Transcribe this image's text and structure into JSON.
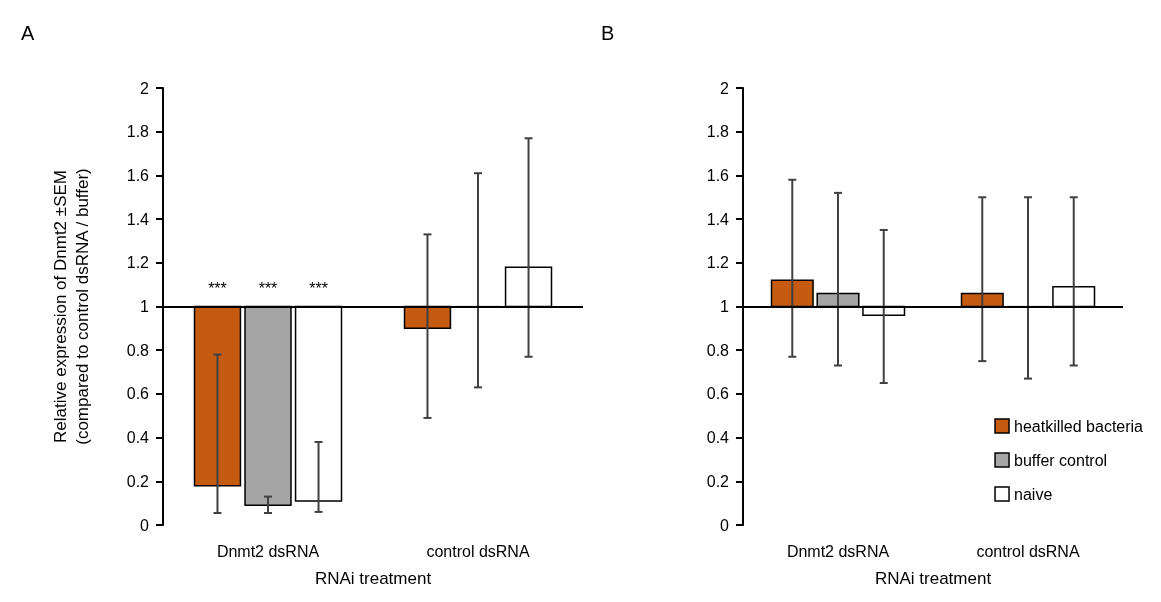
{
  "chart_data": [
    {
      "type": "bar",
      "title": "A",
      "ylabel": "Relative expression of Dnmt2 ±SEM\n(compared to control dsRNA / buffer)",
      "xlabel": "RNAi treatment",
      "categories": [
        "Dnmt2 dsRNA",
        "control dsRNA"
      ],
      "series": [
        {
          "color": "#c55a11",
          "base": [
            1,
            1
          ],
          "values": [
            -0.82,
            -0.1
          ],
          "errors": [
            [
              0.055,
              0.78
            ],
            [
              0.49,
              1.33
            ]
          ]
        },
        {
          "color": "#a5a5a5",
          "base": [
            1,
            1
          ],
          "values": [
            -0.91,
            0
          ],
          "errors": [
            [
              0.055,
              0.13
            ],
            [
              0.63,
              1.61
            ]
          ]
        },
        {
          "color": "#ffffff",
          "base": [
            1,
            1
          ],
          "values": [
            -0.89,
            0.18
          ],
          "errors": [
            [
              0.06,
              0.38
            ],
            [
              0.77,
              1.77
            ]
          ]
        }
      ],
      "ylim": [
        0,
        2
      ],
      "yticks": [
        0,
        0.2,
        0.4,
        0.6,
        0.8,
        1,
        1.2,
        1.4,
        1.6,
        1.8,
        2
      ],
      "ref_lines": [
        {
          "axis": "y",
          "value": 1
        }
      ],
      "annotations": [
        "***",
        "***",
        "***"
      ],
      "grid": false,
      "legend": false
    },
    {
      "type": "bar",
      "title": "B",
      "xlabel": "RNAi treatment",
      "categories": [
        "Dnmt2 dsRNA",
        "control dsRNA"
      ],
      "series": [
        {
          "name": "heatkilled bacteria",
          "color": "#c55a11",
          "base": [
            1,
            1
          ],
          "values": [
            0.12,
            0.06
          ],
          "errors": [
            [
              0.77,
              1.58
            ],
            [
              0.75,
              1.5
            ]
          ]
        },
        {
          "name": "buffer control",
          "color": "#a5a5a5",
          "base": [
            1,
            1
          ],
          "values": [
            0.06,
            0
          ],
          "errors": [
            [
              0.73,
              1.52
            ],
            [
              0.67,
              1.5
            ]
          ]
        },
        {
          "name": "naive",
          "color": "#ffffff",
          "base": [
            1,
            1
          ],
          "values": [
            -0.04,
            0.09
          ],
          "errors": [
            [
              0.65,
              1.35
            ],
            [
              0.73,
              1.5
            ]
          ]
        }
      ],
      "ylim": [
        0,
        2
      ],
      "yticks": [
        0,
        0.2,
        0.4,
        0.6,
        0.8,
        1,
        1.2,
        1.4,
        1.6,
        1.8,
        2
      ],
      "ref_lines": [
        {
          "axis": "y",
          "value": 1
        }
      ],
      "grid": false,
      "legend": "bottom right"
    }
  ]
}
